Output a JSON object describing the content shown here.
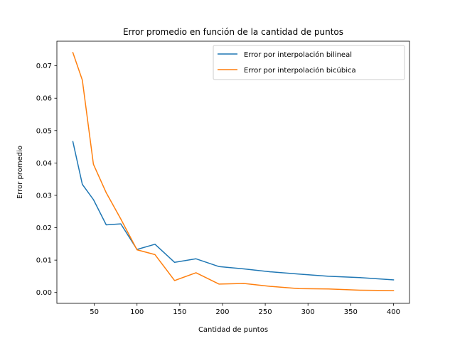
{
  "chart_data": {
    "type": "line",
    "title": "Error promedio en función de la cantidad de puntos",
    "xlabel": "Cantidad de puntos",
    "ylabel": "Error promedio",
    "xlim": [
      6.25,
      418.75
    ],
    "ylim": [
      -0.00335,
      0.0776
    ],
    "xticks": [
      50,
      100,
      150,
      200,
      250,
      300,
      350,
      400
    ],
    "xtick_labels": [
      "50",
      "100",
      "150",
      "200",
      "250",
      "300",
      "350",
      "400"
    ],
    "yticks": [
      0.0,
      0.01,
      0.02,
      0.03,
      0.04,
      0.05,
      0.06,
      0.07
    ],
    "ytick_labels": [
      "0.00",
      "0.01",
      "0.02",
      "0.03",
      "0.04",
      "0.05",
      "0.06",
      "0.07"
    ],
    "grid": false,
    "legend_position": "upper right",
    "series": [
      {
        "name": "Error por interpolación bilineal",
        "color": "#1f77b4",
        "x": [
          25,
          36,
          49,
          64,
          81,
          100,
          121,
          144,
          169,
          196,
          225,
          256,
          289,
          324,
          361,
          400
        ],
        "y": [
          0.0466,
          0.0334,
          0.0287,
          0.0209,
          0.0212,
          0.0133,
          0.0149,
          0.0093,
          0.0104,
          0.008,
          0.0073,
          0.0064,
          0.0057,
          0.005,
          0.0046,
          0.0039
        ]
      },
      {
        "name": "Error por interpolación bicúbica",
        "color": "#ff7f0e",
        "x": [
          25,
          36,
          49,
          64,
          81,
          100,
          121,
          144,
          169,
          196,
          225,
          256,
          289,
          324,
          361,
          400
        ],
        "y": [
          0.0741,
          0.0656,
          0.0396,
          0.0308,
          0.0227,
          0.0132,
          0.0117,
          0.0037,
          0.0061,
          0.0026,
          0.0028,
          0.0019,
          0.0012,
          0.0011,
          0.0007,
          0.0006
        ]
      }
    ]
  }
}
